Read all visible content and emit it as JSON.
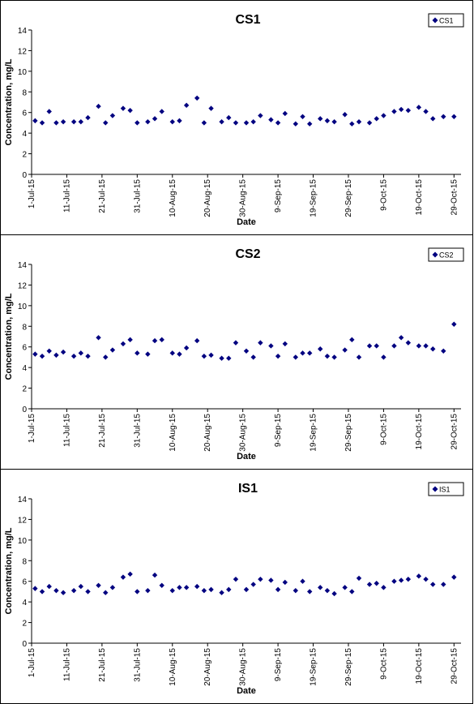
{
  "x_ticks": [
    "1-Jul-15",
    "11-Jul-15",
    "21-Jul-15",
    "31-Jul-15",
    "10-Aug-15",
    "20-Aug-15",
    "30-Aug-15",
    "9-Sep-15",
    "19-Sep-15",
    "29-Sep-15",
    "9-Oct-15",
    "19-Oct-15",
    "29-Oct-15"
  ],
  "y_ticks": [
    "0",
    "2",
    "4",
    "6",
    "8",
    "10",
    "12",
    "14"
  ],
  "chart_data": [
    {
      "type": "scatter",
      "title": "CS1",
      "xlabel": "Date",
      "ylabel": "Concentration, mg/L",
      "ylim": [
        0,
        14
      ],
      "xlim": [
        "2015-07-01",
        "2015-10-31"
      ],
      "grid": false,
      "legend_position": "top-right",
      "series": [
        {
          "name": "CS1",
          "color": "#000080",
          "x": [
            "2015-07-02",
            "2015-07-04",
            "2015-07-06",
            "2015-07-08",
            "2015-07-10",
            "2015-07-13",
            "2015-07-15",
            "2015-07-17",
            "2015-07-20",
            "2015-07-22",
            "2015-07-24",
            "2015-07-27",
            "2015-07-29",
            "2015-07-31",
            "2015-08-03",
            "2015-08-05",
            "2015-08-07",
            "2015-08-10",
            "2015-08-12",
            "2015-08-14",
            "2015-08-17",
            "2015-08-19",
            "2015-08-21",
            "2015-08-24",
            "2015-08-26",
            "2015-08-28",
            "2015-08-31",
            "2015-09-02",
            "2015-09-04",
            "2015-09-07",
            "2015-09-09",
            "2015-09-11",
            "2015-09-14",
            "2015-09-16",
            "2015-09-18",
            "2015-09-21",
            "2015-09-23",
            "2015-09-25",
            "2015-09-28",
            "2015-09-30",
            "2015-10-02",
            "2015-10-05",
            "2015-10-07",
            "2015-10-09",
            "2015-10-12",
            "2015-10-14",
            "2015-10-16",
            "2015-10-19",
            "2015-10-21",
            "2015-10-23",
            "2015-10-26",
            "2015-10-29"
          ],
          "y": [
            5.2,
            5.0,
            6.1,
            5.0,
            5.1,
            5.1,
            5.1,
            5.5,
            6.6,
            5.0,
            5.7,
            6.4,
            6.2,
            5.0,
            5.1,
            5.4,
            6.1,
            5.1,
            5.2,
            6.7,
            7.4,
            5.0,
            6.4,
            5.1,
            5.5,
            5.0,
            5.0,
            5.1,
            5.7,
            5.3,
            5.0,
            5.9,
            4.9,
            5.6,
            4.9,
            5.4,
            5.2,
            5.1,
            5.8,
            4.9,
            5.1,
            5.0,
            5.4,
            5.7,
            6.1,
            6.3,
            6.2,
            6.5,
            6.1,
            5.4,
            5.6,
            5.6
          ]
        }
      ]
    },
    {
      "type": "scatter",
      "title": "CS2",
      "xlabel": "Date",
      "ylabel": "Concentration, mg/L",
      "ylim": [
        0,
        14
      ],
      "xlim": [
        "2015-07-01",
        "2015-10-31"
      ],
      "grid": false,
      "legend_position": "top-right",
      "series": [
        {
          "name": "CS2",
          "color": "#000080",
          "x": [
            "2015-07-02",
            "2015-07-04",
            "2015-07-06",
            "2015-07-08",
            "2015-07-10",
            "2015-07-13",
            "2015-07-15",
            "2015-07-17",
            "2015-07-20",
            "2015-07-22",
            "2015-07-24",
            "2015-07-27",
            "2015-07-29",
            "2015-07-31",
            "2015-08-03",
            "2015-08-05",
            "2015-08-07",
            "2015-08-10",
            "2015-08-12",
            "2015-08-14",
            "2015-08-17",
            "2015-08-19",
            "2015-08-21",
            "2015-08-24",
            "2015-08-26",
            "2015-08-28",
            "2015-08-31",
            "2015-09-02",
            "2015-09-04",
            "2015-09-07",
            "2015-09-09",
            "2015-09-11",
            "2015-09-14",
            "2015-09-16",
            "2015-09-18",
            "2015-09-21",
            "2015-09-23",
            "2015-09-25",
            "2015-09-28",
            "2015-09-30",
            "2015-10-02",
            "2015-10-05",
            "2015-10-07",
            "2015-10-09",
            "2015-10-12",
            "2015-10-14",
            "2015-10-16",
            "2015-10-19",
            "2015-10-21",
            "2015-10-23",
            "2015-10-26",
            "2015-10-29"
          ],
          "y": [
            5.3,
            5.1,
            5.6,
            5.2,
            5.5,
            5.1,
            5.4,
            5.1,
            6.9,
            5.0,
            5.7,
            6.3,
            6.7,
            5.4,
            5.3,
            6.6,
            6.7,
            5.4,
            5.3,
            5.9,
            6.6,
            5.1,
            5.2,
            4.9,
            4.9,
            6.4,
            5.6,
            5.0,
            6.4,
            6.1,
            5.1,
            6.3,
            5.0,
            5.4,
            5.4,
            5.8,
            5.1,
            5.0,
            5.7,
            6.7,
            5.0,
            6.1,
            6.1,
            5.0,
            6.1,
            6.9,
            6.4,
            6.1,
            6.1,
            5.8,
            5.6,
            8.2
          ]
        }
      ]
    },
    {
      "type": "scatter",
      "title": "IS1",
      "xlabel": "Date",
      "ylabel": "Concentration, mg/L",
      "ylim": [
        0,
        14
      ],
      "xlim": [
        "2015-07-01",
        "2015-10-31"
      ],
      "grid": false,
      "legend_position": "top-right",
      "series": [
        {
          "name": "IS1",
          "color": "#000080",
          "x": [
            "2015-07-02",
            "2015-07-04",
            "2015-07-06",
            "2015-07-08",
            "2015-07-10",
            "2015-07-13",
            "2015-07-15",
            "2015-07-17",
            "2015-07-20",
            "2015-07-22",
            "2015-07-24",
            "2015-07-27",
            "2015-07-29",
            "2015-07-31",
            "2015-08-03",
            "2015-08-05",
            "2015-08-07",
            "2015-08-10",
            "2015-08-12",
            "2015-08-14",
            "2015-08-17",
            "2015-08-19",
            "2015-08-21",
            "2015-08-24",
            "2015-08-26",
            "2015-08-28",
            "2015-08-31",
            "2015-09-02",
            "2015-09-04",
            "2015-09-07",
            "2015-09-09",
            "2015-09-11",
            "2015-09-14",
            "2015-09-16",
            "2015-09-18",
            "2015-09-21",
            "2015-09-23",
            "2015-09-25",
            "2015-09-28",
            "2015-09-30",
            "2015-10-02",
            "2015-10-05",
            "2015-10-07",
            "2015-10-09",
            "2015-10-12",
            "2015-10-14",
            "2015-10-16",
            "2015-10-19",
            "2015-10-21",
            "2015-10-23",
            "2015-10-26",
            "2015-10-29"
          ],
          "y": [
            5.3,
            5.0,
            5.5,
            5.1,
            4.9,
            5.1,
            5.5,
            5.0,
            5.6,
            4.9,
            5.4,
            6.4,
            6.7,
            5.0,
            5.1,
            6.6,
            5.6,
            5.1,
            5.4,
            5.4,
            5.5,
            5.1,
            5.2,
            4.9,
            5.2,
            6.2,
            5.2,
            5.7,
            6.2,
            6.1,
            5.2,
            5.9,
            5.1,
            6.0,
            5.0,
            5.4,
            5.1,
            4.8,
            5.4,
            5.0,
            6.3,
            5.7,
            5.8,
            5.4,
            6.0,
            6.1,
            6.2,
            6.5,
            6.2,
            5.7,
            5.7,
            6.4
          ]
        }
      ]
    }
  ]
}
